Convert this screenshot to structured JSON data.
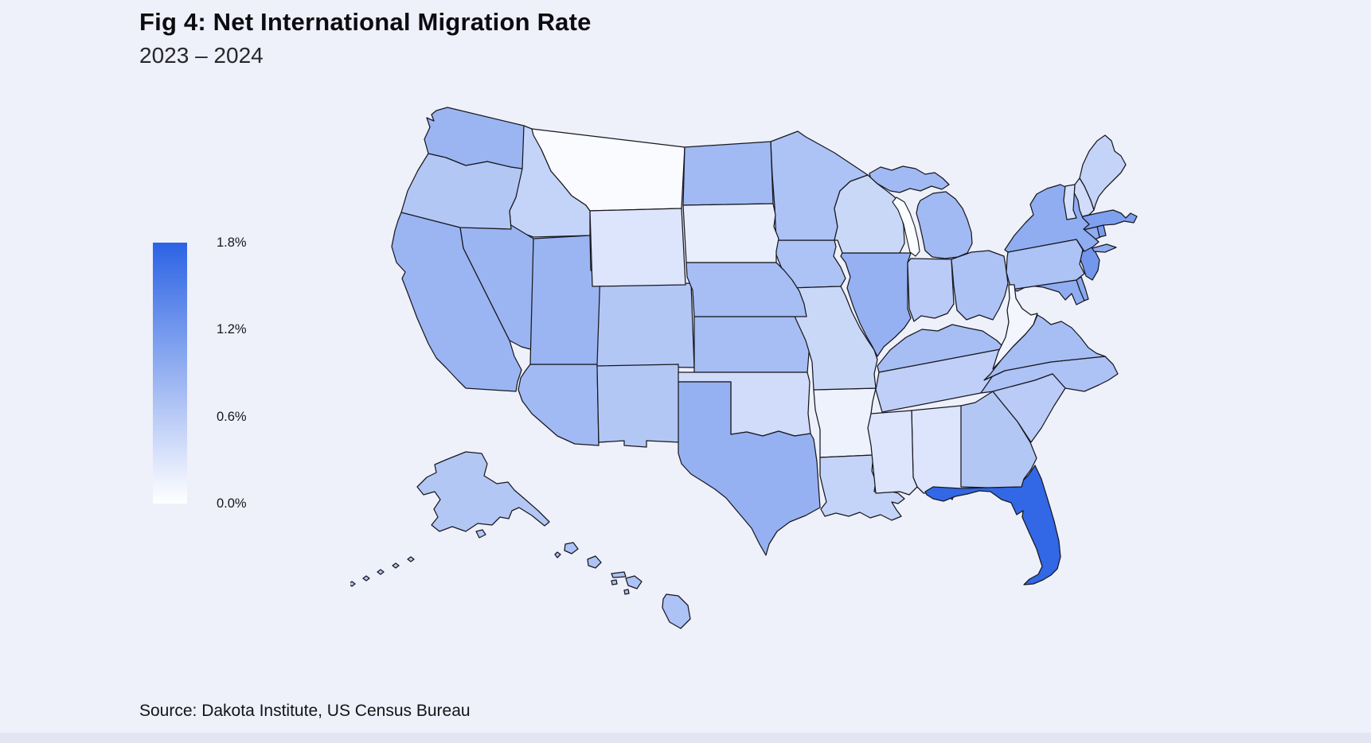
{
  "header": {
    "title": "Fig 4: Net International Migration Rate",
    "subtitle": "2023 – 2024"
  },
  "footer": {
    "source": "Source: Dakota Institute, US Census Bureau"
  },
  "legend": {
    "ticks": [
      "1.8%",
      "1.2%",
      "0.6%",
      "0.0%"
    ],
    "max_pct": 1.8,
    "min_pct": 0.0
  },
  "colors": {
    "scale_high": "#2c63e4",
    "scale_low": "#ffffff",
    "background": "#eef0fa",
    "state_border": "#181820",
    "lake_fill": "#fcfdff",
    "footer_strip": "#e3e6f2"
  },
  "chart_data": {
    "type": "choropleth_map",
    "region": "United States (states, Albers projection with Alaska and Hawaii insets)",
    "metric": "Net international migration rate, 2023–2024",
    "unit": "%",
    "scale_domain": [
      0,
      1.8
    ],
    "legend_labels": [
      "0.0%",
      "0.6%",
      "1.2%",
      "1.8%"
    ],
    "states": [
      {
        "code": "AL",
        "name": "Alabama",
        "value_pct": 0.3
      },
      {
        "code": "AK",
        "name": "Alaska",
        "value_pct": 0.65
      },
      {
        "code": "AZ",
        "name": "Arizona",
        "value_pct": 0.8
      },
      {
        "code": "AR",
        "name": "Arkansas",
        "value_pct": 0.15
      },
      {
        "code": "CA",
        "name": "California",
        "value_pct": 0.85
      },
      {
        "code": "CO",
        "name": "Colorado",
        "value_pct": 0.65
      },
      {
        "code": "CT",
        "name": "Connecticut",
        "value_pct": 0.95
      },
      {
        "code": "DE",
        "name": "Delaware",
        "value_pct": 1.0
      },
      {
        "code": "FL",
        "name": "Florida",
        "value_pct": 1.75
      },
      {
        "code": "GA",
        "name": "Georgia",
        "value_pct": 0.65
      },
      {
        "code": "HI",
        "name": "Hawaii",
        "value_pct": 0.7
      },
      {
        "code": "ID",
        "name": "Idaho",
        "value_pct": 0.5
      },
      {
        "code": "IL",
        "name": "Illinois",
        "value_pct": 0.9
      },
      {
        "code": "IN",
        "name": "Indiana",
        "value_pct": 0.6
      },
      {
        "code": "IA",
        "name": "Iowa",
        "value_pct": 0.7
      },
      {
        "code": "KS",
        "name": "Kansas",
        "value_pct": 0.75
      },
      {
        "code": "KY",
        "name": "Kentucky",
        "value_pct": 0.75
      },
      {
        "code": "LA",
        "name": "Louisiana",
        "value_pct": 0.5
      },
      {
        "code": "ME",
        "name": "Maine",
        "value_pct": 0.5
      },
      {
        "code": "MD",
        "name": "Maryland",
        "value_pct": 0.95
      },
      {
        "code": "MA",
        "name": "Massachusetts",
        "value_pct": 1.1
      },
      {
        "code": "MI",
        "name": "Michigan",
        "value_pct": 0.8
      },
      {
        "code": "MN",
        "name": "Minnesota",
        "value_pct": 0.7
      },
      {
        "code": "MS",
        "name": "Mississippi",
        "value_pct": 0.3
      },
      {
        "code": "MO",
        "name": "Missouri",
        "value_pct": 0.45
      },
      {
        "code": "MT",
        "name": "Montana",
        "value_pct": 0.05
      },
      {
        "code": "NE",
        "name": "Nebraska",
        "value_pct": 0.75
      },
      {
        "code": "NV",
        "name": "Nevada",
        "value_pct": 0.85
      },
      {
        "code": "NH",
        "name": "New Hampshire",
        "value_pct": 0.4
      },
      {
        "code": "NJ",
        "name": "New Jersey",
        "value_pct": 1.2
      },
      {
        "code": "NM",
        "name": "New Mexico",
        "value_pct": 0.65
      },
      {
        "code": "NY",
        "name": "New York",
        "value_pct": 0.95
      },
      {
        "code": "NC",
        "name": "North Carolina",
        "value_pct": 0.7
      },
      {
        "code": "ND",
        "name": "North Dakota",
        "value_pct": 0.8
      },
      {
        "code": "OH",
        "name": "Ohio",
        "value_pct": 0.7
      },
      {
        "code": "OK",
        "name": "Oklahoma",
        "value_pct": 0.4
      },
      {
        "code": "OR",
        "name": "Oregon",
        "value_pct": 0.65
      },
      {
        "code": "PA",
        "name": "Pennsylvania",
        "value_pct": 0.7
      },
      {
        "code": "RI",
        "name": "Rhode Island",
        "value_pct": 1.15
      },
      {
        "code": "SC",
        "name": "South Carolina",
        "value_pct": 0.6
      },
      {
        "code": "SD",
        "name": "South Dakota",
        "value_pct": 0.2
      },
      {
        "code": "TN",
        "name": "Tennessee",
        "value_pct": 0.55
      },
      {
        "code": "TX",
        "name": "Texas",
        "value_pct": 0.9
      },
      {
        "code": "UT",
        "name": "Utah",
        "value_pct": 0.85
      },
      {
        "code": "VT",
        "name": "Vermont",
        "value_pct": 0.35
      },
      {
        "code": "VA",
        "name": "Virginia",
        "value_pct": 0.75
      },
      {
        "code": "WA",
        "name": "Washington",
        "value_pct": 0.85
      },
      {
        "code": "WV",
        "name": "West Virginia",
        "value_pct": 0.1
      },
      {
        "code": "WI",
        "name": "Wisconsin",
        "value_pct": 0.45
      },
      {
        "code": "WY",
        "name": "Wyoming",
        "value_pct": 0.3
      }
    ]
  }
}
